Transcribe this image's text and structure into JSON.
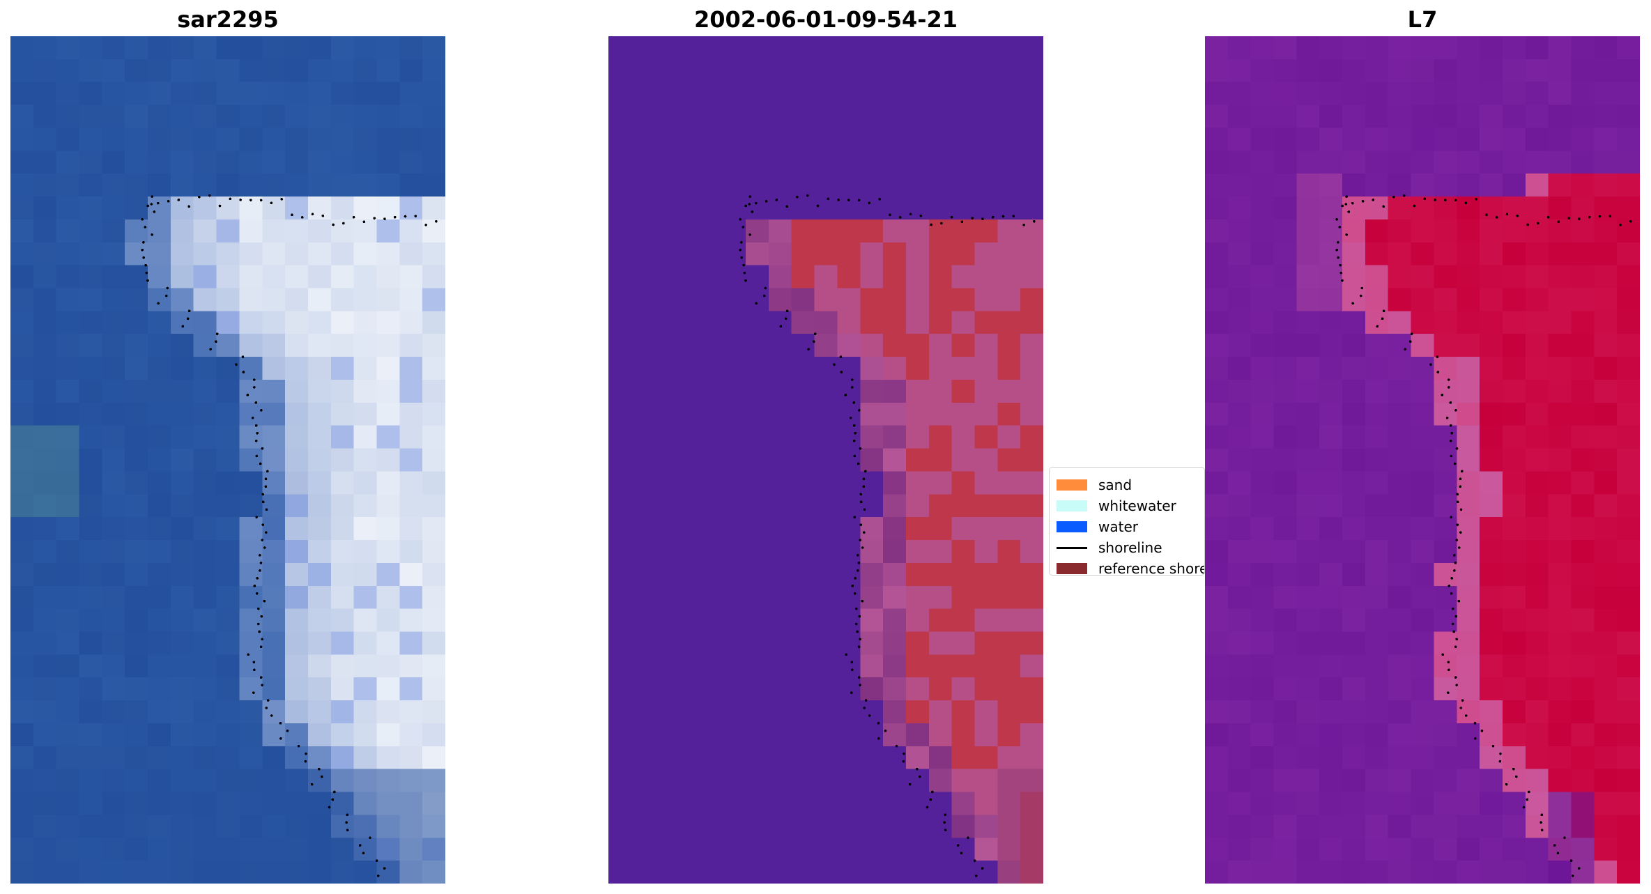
{
  "panels": [
    {
      "title": "sar2295",
      "style": "rgb"
    },
    {
      "title": "2002-06-01-09-54-21",
      "style": "classified"
    },
    {
      "title": "L7",
      "style": "index"
    }
  ],
  "legend": {
    "items": [
      {
        "label": "sand",
        "color": "#ff8c3a",
        "kind": "patch"
      },
      {
        "label": "whitewater",
        "color": "#c8fcf8",
        "kind": "patch"
      },
      {
        "label": "water",
        "color": "#0a5cff",
        "kind": "patch"
      },
      {
        "label": "shoreline",
        "color": "#000000",
        "kind": "line"
      },
      {
        "label": "reference shoreline",
        "color": "#8b2a2e",
        "kind": "patch"
      }
    ]
  },
  "colors": {
    "ocean_blue": "#244f9c",
    "classified_background": "#54219a",
    "index_background": "#7a22a0",
    "index_high": "#c7003b",
    "shoreline_dots": "#000000"
  }
}
